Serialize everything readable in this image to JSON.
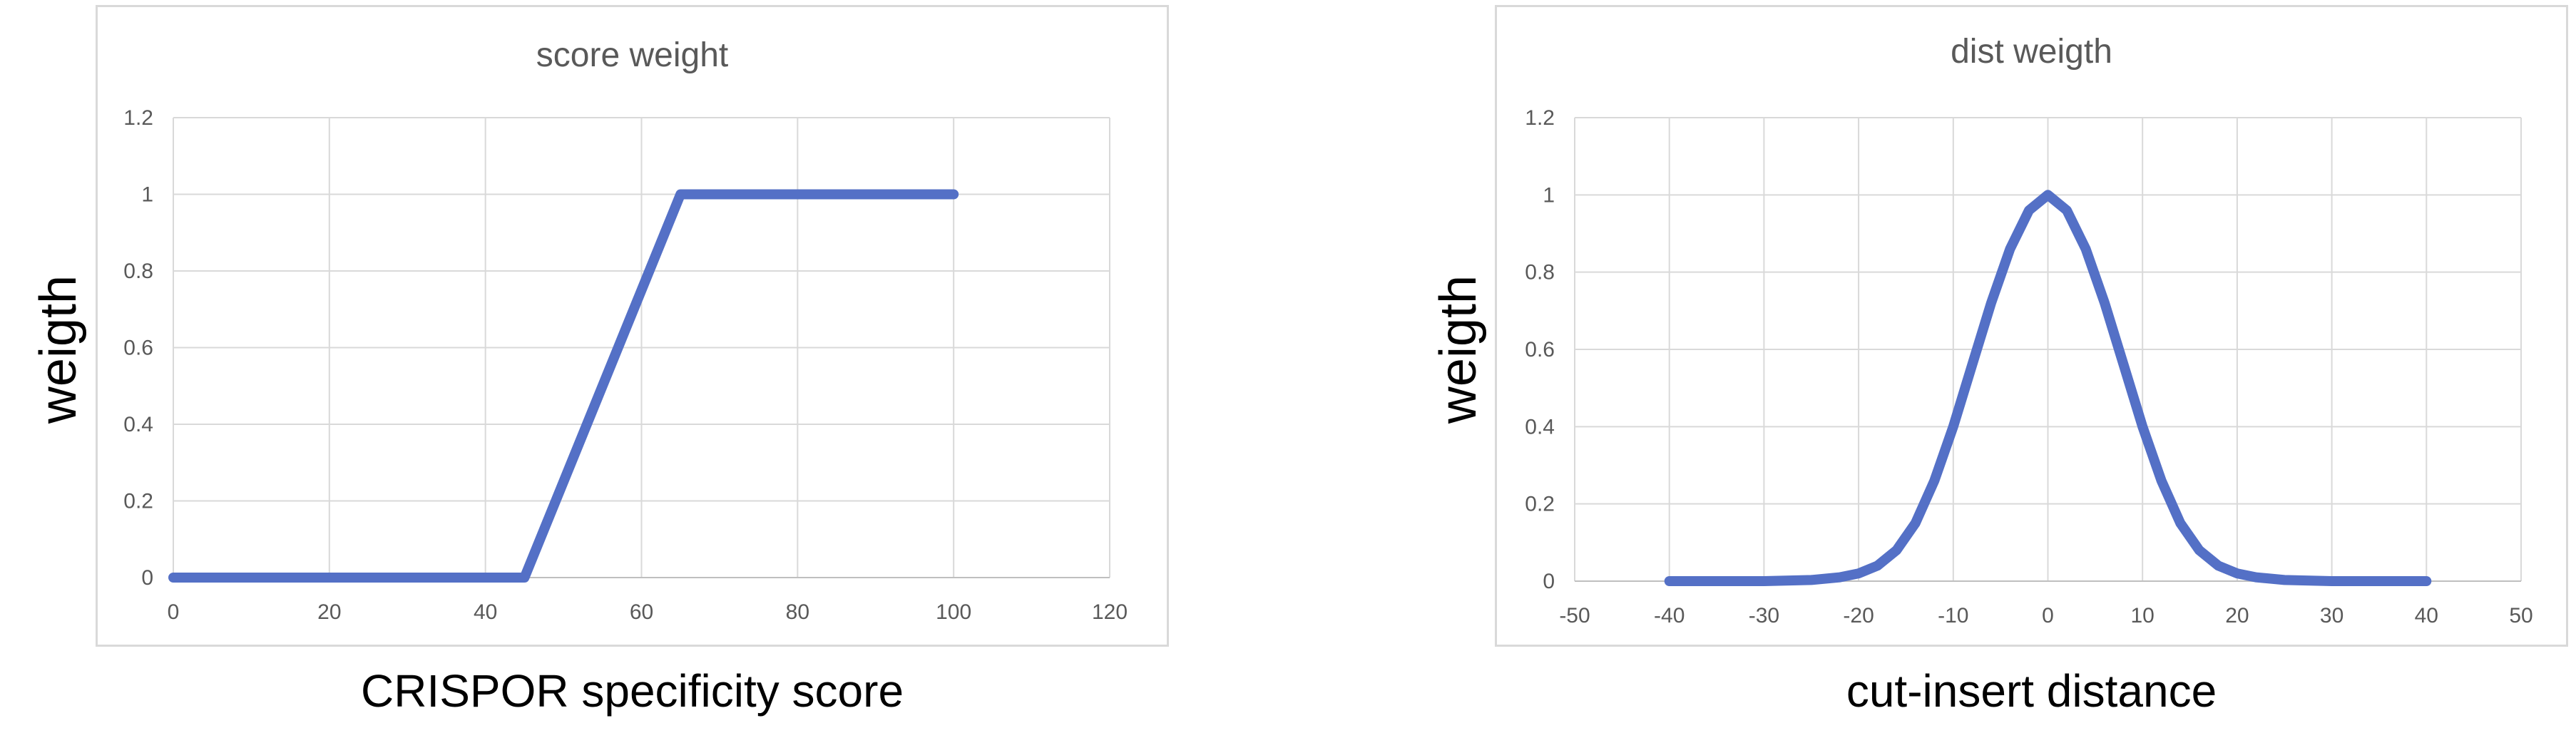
{
  "chart_data": [
    {
      "type": "line",
      "title": "score weight",
      "ylabel": "weigth",
      "xlabel": "CRISPOR specificity score",
      "xlim": [
        0,
        120
      ],
      "ylim": [
        0,
        1.2
      ],
      "x_ticks": [
        "0",
        "20",
        "40",
        "60",
        "80",
        "100",
        "120"
      ],
      "y_ticks": [
        "0",
        "0.2",
        "0.4",
        "0.6",
        "0.8",
        "1",
        "1.2"
      ],
      "grid": true,
      "series": [
        {
          "x": [
            0,
            45,
            65,
            100
          ],
          "y": [
            0,
            0,
            1,
            1
          ],
          "color": "#5470c6"
        }
      ]
    },
    {
      "type": "line",
      "title": "dist weigth",
      "ylabel": "weigth",
      "xlabel": "cut-insert distance",
      "xlim": [
        -50,
        50
      ],
      "ylim": [
        0,
        1.2
      ],
      "x_ticks": [
        "-50",
        "-40",
        "-30",
        "-20",
        "-10",
        "0",
        "10",
        "20",
        "30",
        "40",
        "50"
      ],
      "y_ticks": [
        "0",
        "0.2",
        "0.4",
        "0.6",
        "0.8",
        "1",
        "1.2"
      ],
      "grid": true,
      "series": [
        {
          "x": [
            -40,
            -35,
            -30,
            -25,
            -22,
            -20,
            -18,
            -16,
            -14,
            -12,
            -10,
            -8,
            -6,
            -4,
            -2,
            0,
            2,
            4,
            6,
            8,
            10,
            12,
            14,
            16,
            18,
            20,
            22,
            25,
            30,
            35,
            40
          ],
          "y": [
            0,
            0,
            0,
            0.003,
            0.01,
            0.02,
            0.04,
            0.08,
            0.15,
            0.26,
            0.4,
            0.56,
            0.72,
            0.86,
            0.96,
            1,
            0.96,
            0.86,
            0.72,
            0.56,
            0.4,
            0.26,
            0.15,
            0.08,
            0.04,
            0.02,
            0.01,
            0.003,
            0,
            0,
            0
          ],
          "color": "#5470c6"
        }
      ]
    }
  ]
}
